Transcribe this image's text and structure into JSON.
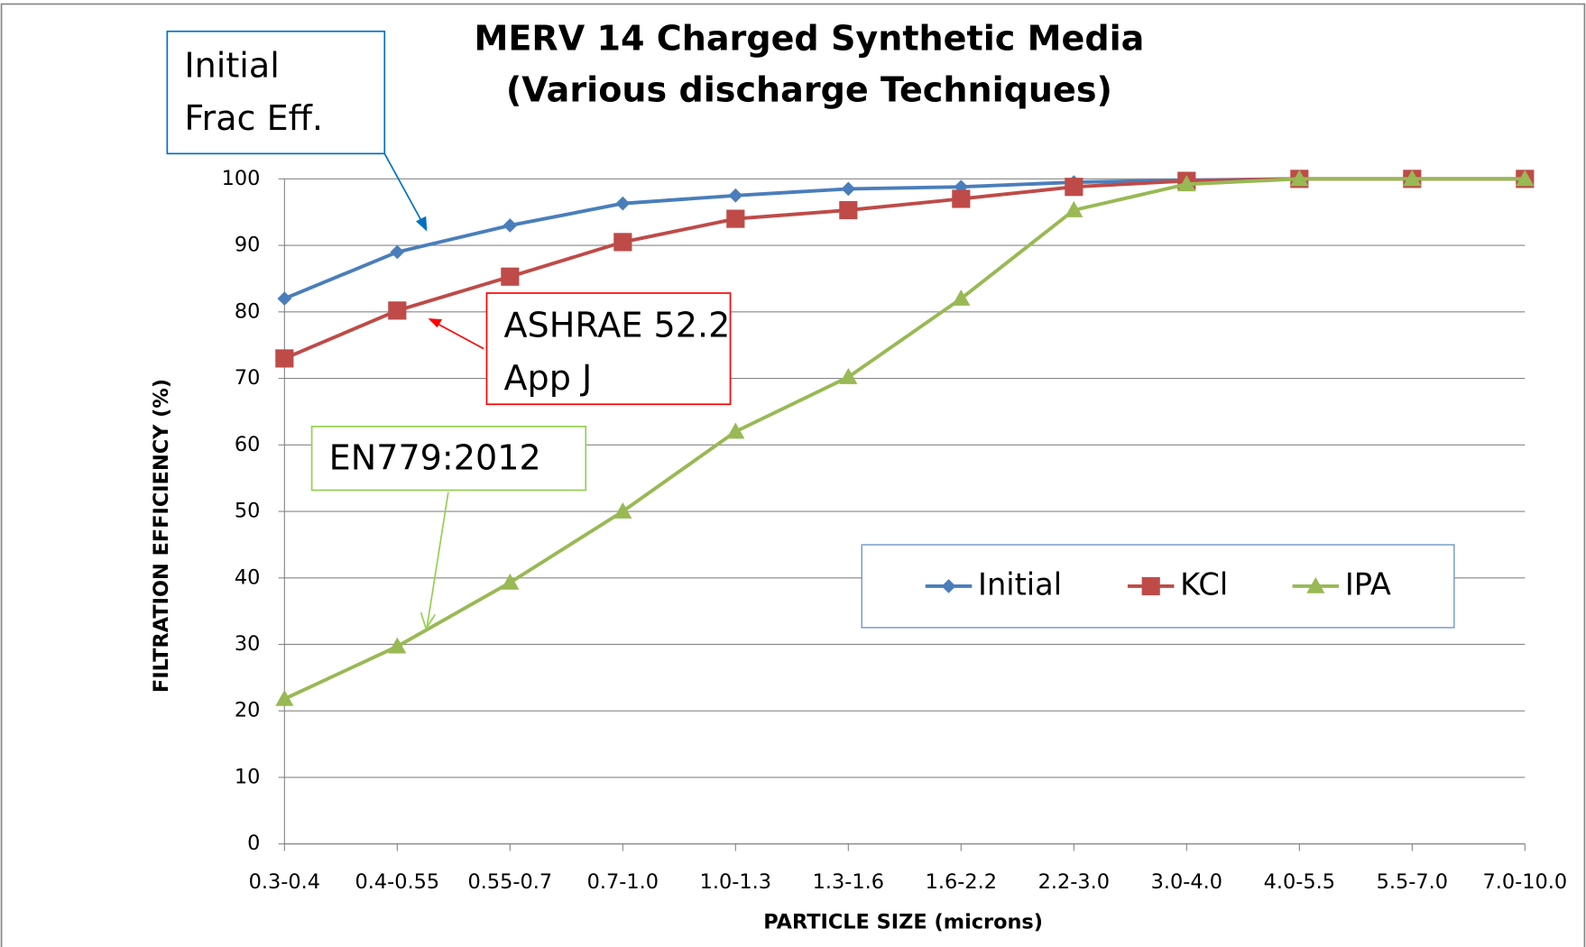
{
  "chart_data": {
    "type": "line",
    "title": [
      "MERV 14 Charged Synthetic Media",
      "(Various discharge Techniques)"
    ],
    "x_label": "PARTICLE SIZE (microns)",
    "y_label": "FILTRATION EFFICIENCY (%)",
    "categories": [
      "0.3-0.4",
      "0.4-0.55",
      "0.55-0.7",
      "0.7-1.0",
      "1.0-1.3",
      "1.3-1.6",
      "1.6-2.2",
      "2.2-3.0",
      "3.0-4.0",
      "4.0-5.5",
      "5.5-7.0",
      "7.0-10.0"
    ],
    "series": [
      {
        "name": "Initial",
        "color": "#4a7ebb",
        "marker": "diamond",
        "values": [
          82,
          89,
          93,
          96.3,
          97.5,
          98.5,
          98.8,
          99.5,
          99.8,
          100,
          100,
          100
        ]
      },
      {
        "name": "KCl",
        "color": "#be4b48",
        "marker": "square",
        "values": [
          73,
          80.2,
          85.3,
          90.5,
          94,
          95.3,
          97,
          98.8,
          99.7,
          100,
          100,
          100
        ]
      },
      {
        "name": "IPA",
        "color": "#98b954",
        "marker": "triangle",
        "values": [
          21.8,
          29.7,
          39.3,
          50,
          62,
          70.2,
          82,
          95.3,
          99.2,
          100,
          100,
          100
        ]
      }
    ],
    "ylim": [
      0,
      100
    ],
    "yticks": [
      0,
      10,
      20,
      30,
      40,
      50,
      60,
      70,
      80,
      90,
      100
    ],
    "grid": true,
    "legend": "center-right",
    "annotations": [
      {
        "lines": [
          "Initial",
          "Frac Eff."
        ],
        "color": "#0070c0"
      },
      {
        "lines": [
          "ASHRAE 52.2",
          "App J"
        ],
        "color": "#ff0000"
      },
      {
        "lines": [
          "EN779:2012"
        ],
        "color": "#92d050"
      }
    ]
  }
}
